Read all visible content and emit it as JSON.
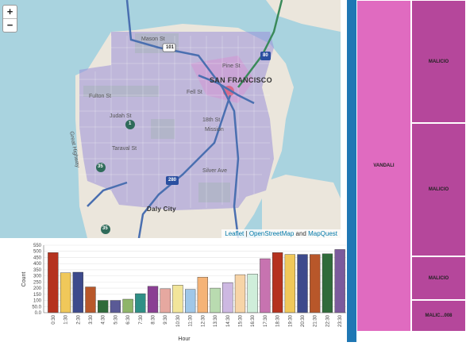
{
  "map": {
    "zoom_in": "+",
    "zoom_out": "−",
    "city_label": "SAN FRANCISCO",
    "daly_city": "Daly City",
    "labels": {
      "mason_st": "Mason St",
      "pine_st": "Pine St",
      "fell_st": "Fell St",
      "fulton_st": "Fulton St",
      "judah_st": "Judah St",
      "taraval_st": "Taraval St",
      "great_hwy": "Great Highway",
      "h18th_st": "18th St",
      "mission": "Mission",
      "silver_ave": "Silver Ave",
      "hwy_101": "101",
      "hwy_80": "80",
      "hwy_280": "280",
      "hwy_1": "1",
      "hwy_35a": "35",
      "hwy_35b": "35"
    },
    "attribution": {
      "leaflet": "Leaflet",
      "sep": " | ",
      "osm": "OpenStreetMap",
      "and": " and ",
      "mapquest": "MapQuest"
    }
  },
  "chart_data": {
    "type": "bar",
    "xlabel": "Hour",
    "ylabel": "Count",
    "ylim": [
      0,
      550
    ],
    "yticks": [
      "0.0",
      "50.0",
      "100",
      "150",
      "200",
      "250",
      "300",
      "350",
      "400",
      "450",
      "500",
      "550"
    ],
    "categories": [
      "0:30",
      "1:30",
      "2:30",
      "3:30",
      "4:30",
      "5:30",
      "6:30",
      "7:30",
      "8:30",
      "9:30",
      "10:30",
      "11:30",
      "12:30",
      "13:30",
      "14:30",
      "15:30",
      "16:30",
      "17:30",
      "18:30",
      "19:30",
      "20:30",
      "21:30",
      "22:30",
      "23:30"
    ],
    "values": [
      490,
      325,
      330,
      210,
      100,
      100,
      110,
      155,
      215,
      195,
      225,
      190,
      290,
      200,
      245,
      310,
      315,
      440,
      490,
      475,
      475,
      475,
      480,
      515
    ],
    "colors": [
      "#b5321e",
      "#f0c85a",
      "#3d4a8c",
      "#b8572a",
      "#2f6b3a",
      "#5a5a96",
      "#8fb569",
      "#2f8f86",
      "#8a3f93",
      "#e6a8a0",
      "#f2e59a",
      "#9fc7e8",
      "#f5b377",
      "#b9dbb0",
      "#cdb8e2",
      "#f7d4a7",
      "#cfeeda",
      "#c773b0",
      "#b5321e",
      "#f0c85a",
      "#3d4a8c",
      "#b8572a",
      "#2f6b3a",
      "#7b5a9c"
    ]
  },
  "treemap": {
    "vandali": "VANDALI",
    "malicio_1": "MALICIO",
    "malicio_2": "MALICIO",
    "malicio_3": "MALICIO",
    "malicio_4": "MALIC...008",
    "vandali_color": "#e06bc0",
    "malicio_color": "#b5479b"
  }
}
